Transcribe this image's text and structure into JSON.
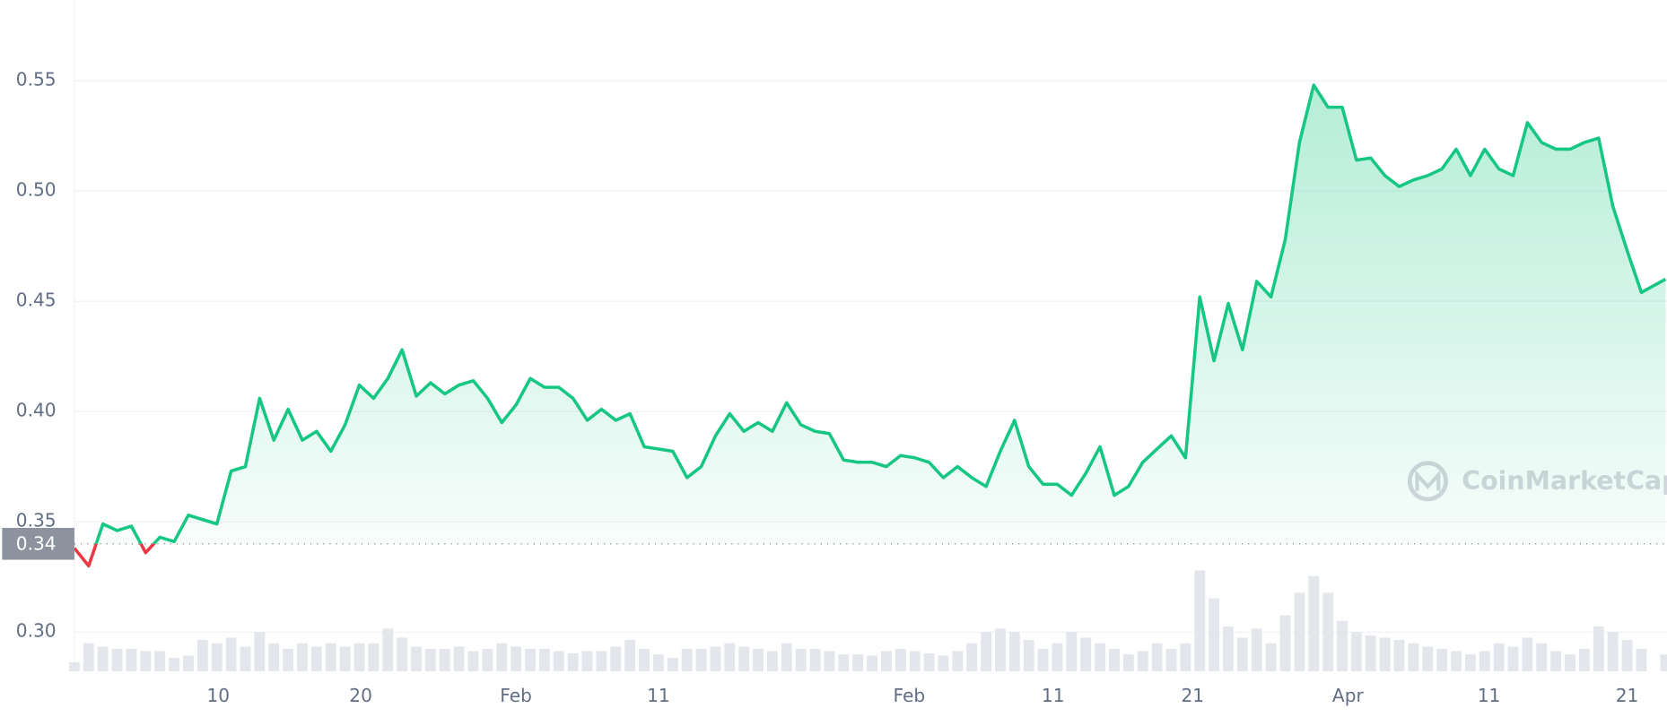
{
  "chart_data": {
    "type": "line",
    "watermark": "CoinMarketCap",
    "x": [
      0,
      1,
      2,
      3,
      4,
      5,
      6,
      7,
      8,
      9,
      10,
      11,
      12,
      13,
      14,
      15,
      16,
      17,
      18,
      19,
      20,
      21,
      22,
      23,
      24,
      25,
      26,
      27,
      28,
      29,
      30,
      31,
      32,
      33,
      34,
      35,
      36,
      37,
      38,
      39,
      40,
      41,
      42,
      43,
      44,
      45,
      46,
      47,
      48,
      49,
      50,
      51,
      52,
      53,
      54,
      55,
      56,
      57,
      58,
      59,
      60,
      61,
      62,
      63,
      64,
      65,
      66,
      67,
      68,
      69,
      70,
      71,
      72,
      73,
      74,
      75,
      76,
      77,
      78,
      79,
      80,
      81,
      82,
      83,
      84,
      85,
      86,
      87,
      88,
      89,
      90,
      91,
      92,
      93,
      94,
      95,
      96,
      97,
      98,
      99,
      100,
      101,
      102,
      103,
      104,
      105,
      106,
      107,
      108,
      109,
      110,
      111.7
    ],
    "series": [
      {
        "color": "#16c784",
        "below_color": "#ea3943",
        "values": [
          0.338,
          0.33,
          0.349,
          0.346,
          0.348,
          0.336,
          0.343,
          0.341,
          0.353,
          0.351,
          0.349,
          0.373,
          0.375,
          0.406,
          0.387,
          0.401,
          0.387,
          0.391,
          0.382,
          0.394,
          0.412,
          0.406,
          0.415,
          0.428,
          0.407,
          0.413,
          0.408,
          0.412,
          0.414,
          0.406,
          0.395,
          0.403,
          0.415,
          0.411,
          0.411,
          0.406,
          0.396,
          0.401,
          0.396,
          0.399,
          0.384,
          0.383,
          0.382,
          0.37,
          0.375,
          0.389,
          0.399,
          0.391,
          0.395,
          0.391,
          0.404,
          0.394,
          0.391,
          0.39,
          0.378,
          0.377,
          0.377,
          0.375,
          0.38,
          0.379,
          0.377,
          0.37,
          0.375,
          0.37,
          0.366,
          0.382,
          0.396,
          0.375,
          0.367,
          0.367,
          0.362,
          0.372,
          0.384,
          0.362,
          0.366,
          0.377,
          0.383,
          0.389,
          0.379,
          0.452,
          0.423,
          0.449,
          0.428,
          0.459,
          0.452,
          0.478,
          0.522,
          0.548,
          0.538,
          0.538,
          0.514,
          0.515,
          0.507,
          0.502,
          0.505,
          0.507,
          0.51,
          0.519,
          0.507,
          0.519,
          0.51,
          0.507,
          0.531,
          0.522,
          0.519,
          0.519,
          0.522,
          0.524,
          0.493,
          0.473,
          0.454,
          0.46
        ]
      }
    ],
    "volume": [
      8,
      25,
      22,
      20,
      20,
      18,
      18,
      12,
      14,
      28,
      25,
      30,
      22,
      35,
      25,
      20,
      25,
      22,
      25,
      22,
      25,
      25,
      38,
      30,
      22,
      20,
      20,
      22,
      18,
      20,
      25,
      22,
      20,
      20,
      18,
      16,
      18,
      18,
      22,
      28,
      20,
      15,
      12,
      20,
      20,
      22,
      25,
      22,
      20,
      18,
      25,
      20,
      20,
      18,
      15,
      15,
      14,
      18,
      20,
      18,
      16,
      14,
      18,
      25,
      35,
      38,
      35,
      28,
      20,
      25,
      35,
      30,
      25,
      20,
      15,
      18,
      25,
      20,
      25,
      90,
      65,
      40,
      30,
      38,
      25,
      50,
      70,
      85,
      70,
      45,
      35,
      32,
      30,
      28,
      25,
      22,
      20,
      18,
      15,
      18,
      25,
      22,
      30,
      25,
      18,
      15,
      20,
      40,
      35,
      28,
      20,
      15
    ],
    "volume_color": "#e3e6eb",
    "reference": 0.34,
    "xlim": [
      0,
      111.8
    ],
    "xticks": [
      {
        "value": 10.1,
        "label": "10"
      },
      {
        "value": 20.1,
        "label": "20"
      },
      {
        "value": 31.0,
        "label": "Feb"
      },
      {
        "value": 41.0,
        "label": "11"
      },
      {
        "value": 58.6,
        "label": "Feb"
      },
      {
        "value": 68.7,
        "label": "11"
      },
      {
        "value": 78.5,
        "label": "21"
      },
      {
        "value": 89.4,
        "label": "Apr"
      },
      {
        "value": 99.3,
        "label": "11"
      },
      {
        "value": 109.0,
        "label": "21"
      }
    ],
    "ylim": [
      0.2822,
      0.5866
    ],
    "yticks": [
      {
        "value": 0.3,
        "label": "0.30"
      },
      0.35,
      {
        "value": 0.4,
        "label": "0.40"
      },
      0.45,
      {
        "value": 0.5,
        "label": "0.50"
      },
      0.55
    ],
    "grid": true
  }
}
